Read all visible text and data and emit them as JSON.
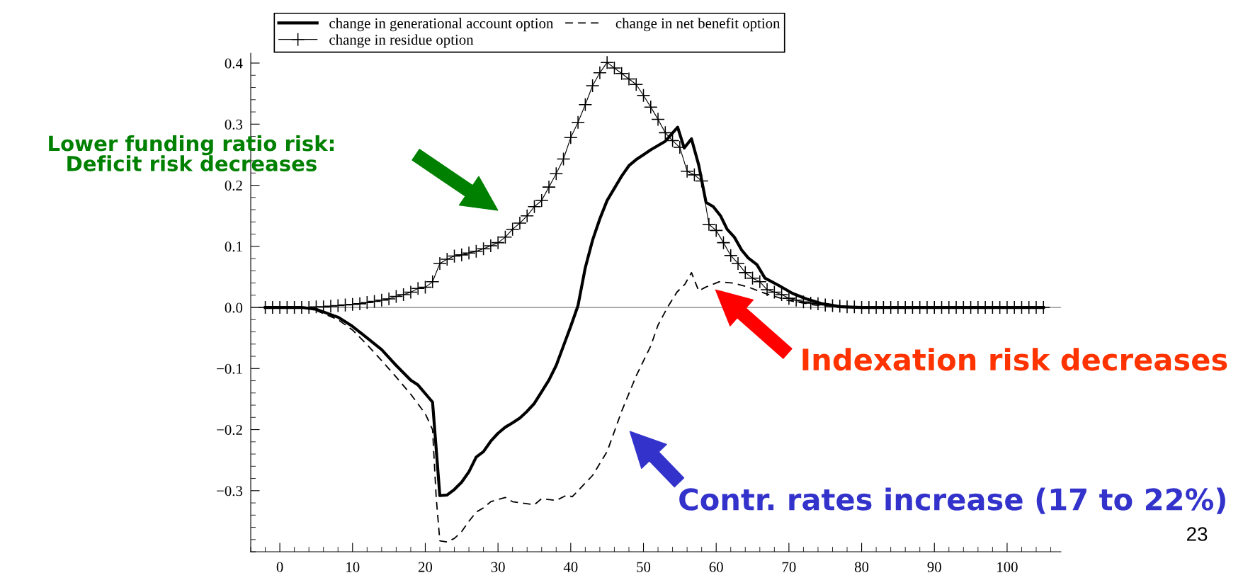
{
  "chart_data": {
    "type": "line",
    "xlim": [
      -4,
      107.4
    ],
    "xticks": [
      0,
      10,
      20,
      30,
      40,
      50,
      60,
      70,
      80,
      90,
      100
    ],
    "ylim": [
      -0.4,
      0.416
    ],
    "yticks": [
      {
        "value": -0.3,
        "label": "−0.3"
      },
      {
        "value": -0.2,
        "label": "−0.2"
      },
      {
        "value": -0.1,
        "label": "−0.1"
      },
      {
        "value": 0,
        "label": "0.0"
      },
      {
        "value": 0.1,
        "label": "0.1"
      },
      {
        "value": 0.2,
        "label": "0.2"
      },
      {
        "value": 0.3,
        "label": "0.3"
      },
      {
        "value": 0.4,
        "label": "0.4"
      }
    ],
    "grid": false,
    "legend": "top",
    "ref_lines": [
      {
        "axis": "y",
        "value": 0,
        "color": "#808080"
      }
    ],
    "series": [
      {
        "name": "change in generational account option",
        "color": "#000000",
        "line_style": "solid",
        "marker": "none",
        "x": [
          -2,
          0,
          3,
          5,
          8,
          10,
          12,
          14,
          16,
          18,
          19,
          21,
          22,
          23,
          24,
          25,
          26,
          27,
          28,
          29,
          30,
          31,
          32,
          33,
          34,
          35,
          36,
          37,
          38,
          39,
          40,
          41,
          42,
          43,
          44,
          45,
          46,
          47,
          48,
          49,
          50,
          51,
          52,
          53,
          54.7,
          55.6,
          56.6,
          57.6,
          58.6,
          59.6,
          60.6,
          61.5,
          62.5,
          63.5,
          64.4,
          65.6,
          66.7,
          68.6,
          70.5,
          72.4,
          74.6,
          77.3,
          80,
          90,
          105
        ],
        "values": [
          0,
          0,
          0,
          -0.003,
          -0.016,
          -0.031,
          -0.05,
          -0.069,
          -0.095,
          -0.119,
          -0.127,
          -0.155,
          -0.308,
          -0.307,
          -0.298,
          -0.286,
          -0.269,
          -0.245,
          -0.236,
          -0.219,
          -0.206,
          -0.196,
          -0.189,
          -0.181,
          -0.17,
          -0.157,
          -0.138,
          -0.119,
          -0.095,
          -0.063,
          -0.031,
          0.003,
          0.065,
          0.11,
          0.145,
          0.175,
          0.195,
          0.215,
          0.232,
          0.242,
          0.25,
          0.258,
          0.265,
          0.272,
          0.295,
          0.261,
          0.276,
          0.233,
          0.172,
          0.165,
          0.15,
          0.128,
          0.115,
          0.094,
          0.081,
          0.07,
          0.048,
          0.036,
          0.023,
          0.014,
          0.006,
          0.001,
          0,
          0,
          0
        ]
      },
      {
        "name": "change in net benefit option",
        "color": "#000000",
        "line_style": "dashed",
        "marker": "none",
        "x": [
          -2,
          0,
          4,
          8,
          10,
          12,
          14,
          16,
          18,
          20,
          21,
          21.5,
          22,
          23,
          24,
          25,
          26,
          27,
          28,
          29,
          31,
          32,
          35,
          36,
          38,
          39.5,
          40.2,
          43,
          45,
          47,
          49,
          51,
          52,
          53.3,
          54.6,
          55.7,
          56.6,
          57.6,
          58.5,
          60.4,
          62.3,
          64.5,
          66.7,
          69.7,
          73.5,
          77.2,
          90,
          105
        ],
        "values": [
          0,
          0,
          0,
          -0.02,
          -0.037,
          -0.061,
          -0.087,
          -0.114,
          -0.142,
          -0.174,
          -0.2,
          -0.311,
          -0.382,
          -0.384,
          -0.378,
          -0.367,
          -0.35,
          -0.335,
          -0.328,
          -0.318,
          -0.311,
          -0.318,
          -0.323,
          -0.313,
          -0.316,
          -0.307,
          -0.31,
          -0.275,
          -0.236,
          -0.17,
          -0.112,
          -0.063,
          -0.029,
          0,
          0.025,
          0.038,
          0.057,
          0.027,
          0.033,
          0.042,
          0.04,
          0.033,
          0.023,
          0.012,
          0.004,
          0,
          0,
          0
        ]
      },
      {
        "name": "change in residue option",
        "color": "#000000",
        "line_style": "solid",
        "marker": "cross",
        "x": [
          -2,
          -1,
          0,
          1,
          2,
          3,
          4,
          5,
          6,
          7,
          8,
          9,
          10,
          11,
          12,
          13,
          14,
          15,
          16,
          17,
          18,
          19,
          20,
          21,
          22,
          23,
          24,
          25,
          26,
          27,
          28,
          29,
          30,
          31,
          32,
          33,
          34,
          35,
          36,
          37,
          38,
          39,
          40,
          41,
          42,
          43,
          44,
          45,
          46,
          47,
          48,
          49,
          50,
          51,
          52,
          53,
          54,
          55,
          56,
          57,
          58,
          59,
          60,
          61,
          62,
          63,
          64,
          65,
          66,
          67,
          68,
          69,
          70,
          71,
          72,
          73,
          74,
          75,
          76,
          77,
          78,
          79,
          80,
          81,
          82,
          83,
          84,
          85,
          86,
          87,
          88,
          89,
          90,
          91,
          92,
          93,
          94,
          95,
          96,
          97,
          98,
          99,
          100,
          101,
          102,
          103,
          104,
          105
        ],
        "values": [
          0,
          0,
          0,
          0,
          0,
          0,
          0,
          0.001,
          0.001,
          0.002,
          0.003,
          0.004,
          0.005,
          0.006,
          0.008,
          0.01,
          0.012,
          0.014,
          0.018,
          0.021,
          0.025,
          0.031,
          0.033,
          0.042,
          0.072,
          0.079,
          0.084,
          0.086,
          0.089,
          0.092,
          0.096,
          0.101,
          0.106,
          0.115,
          0.128,
          0.138,
          0.15,
          0.165,
          0.175,
          0.197,
          0.219,
          0.243,
          0.278,
          0.303,
          0.332,
          0.363,
          0.384,
          0.401,
          0.392,
          0.383,
          0.374,
          0.365,
          0.347,
          0.328,
          0.308,
          0.286,
          0.273,
          0.262,
          0.223,
          0.217,
          0.207,
          0.136,
          0.126,
          0.106,
          0.085,
          0.072,
          0.057,
          0.048,
          0.042,
          0.029,
          0.025,
          0.021,
          0.015,
          0.012,
          0.009,
          0.007,
          0.006,
          0.004,
          0.003,
          0.002,
          0.001,
          0.001,
          0,
          0,
          0,
          0,
          0,
          0,
          0,
          0,
          0,
          0,
          0,
          0,
          0,
          0,
          0,
          0,
          0,
          0,
          0,
          0,
          0,
          0,
          0,
          0,
          0,
          0
        ]
      }
    ],
    "annotations": [
      "Lower funding ratio risk:\nDeficit risk decreases",
      "Indexation risk decreases",
      "Contr. rates increase (17 to 22%)",
      "23"
    ]
  }
}
